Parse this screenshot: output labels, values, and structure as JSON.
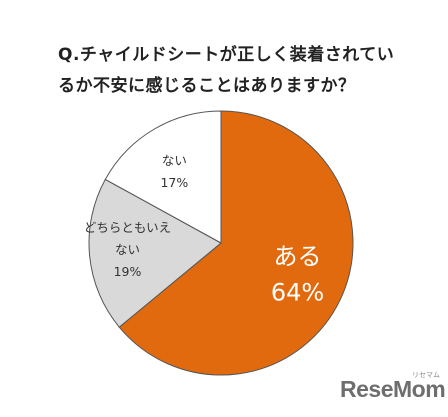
{
  "chart_data": {
    "type": "pie",
    "title_lines": [
      "Q.チャイルドシートが正しく装着されてい",
      "るか不安に感じることはありますか？"
    ],
    "slices": [
      {
        "label_lines": [
          "ある"
        ],
        "value": 64,
        "value_label": "64%",
        "color": "#e26a0e"
      },
      {
        "label_lines": [
          "どちらともいえ",
          "ない"
        ],
        "value": 19,
        "value_label": "19%",
        "color": "#d9d9d9"
      },
      {
        "label_lines": [
          "ない"
        ],
        "value": 17,
        "value_label": "17%",
        "color": "#ffffff"
      }
    ],
    "start": "12 o'clock",
    "direction": "clockwise",
    "legend": "none"
  },
  "watermark": {
    "brand": "ReseMom",
    "sub": "リセマム"
  }
}
